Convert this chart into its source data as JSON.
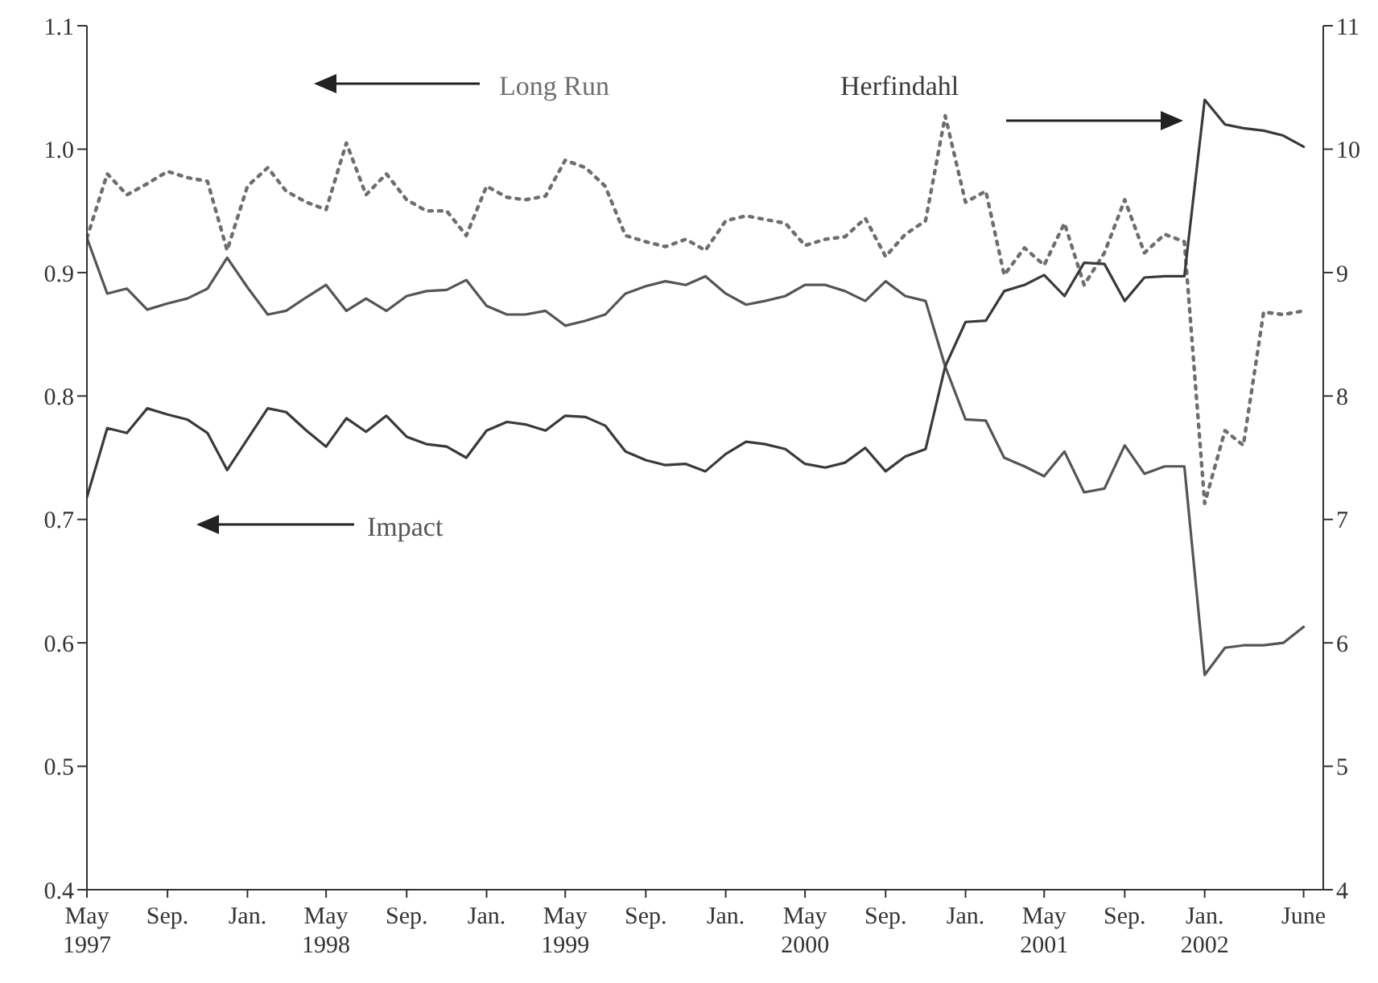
{
  "chart_data": {
    "type": "line",
    "x": [
      "1997-05",
      "1997-06",
      "1997-07",
      "1997-08",
      "1997-09",
      "1997-10",
      "1997-11",
      "1997-12",
      "1998-01",
      "1998-02",
      "1998-03",
      "1998-04",
      "1998-05",
      "1998-06",
      "1998-07",
      "1998-08",
      "1998-09",
      "1998-10",
      "1998-11",
      "1998-12",
      "1999-01",
      "1999-02",
      "1999-03",
      "1999-04",
      "1999-05",
      "1999-06",
      "1999-07",
      "1999-08",
      "1999-09",
      "1999-10",
      "1999-11",
      "1999-12",
      "2000-01",
      "2000-02",
      "2000-03",
      "2000-04",
      "2000-05",
      "2000-06",
      "2000-07",
      "2000-08",
      "2000-09",
      "2000-10",
      "2000-11",
      "2000-12",
      "2001-01",
      "2001-02",
      "2001-03",
      "2001-04",
      "2001-05",
      "2001-06",
      "2001-07",
      "2001-08",
      "2001-09",
      "2001-10",
      "2001-11",
      "2001-12",
      "2002-01",
      "2002-02",
      "2002-03",
      "2002-04",
      "2002-05",
      "2002-06"
    ],
    "series": [
      {
        "name": "Long Run",
        "color": "#6e6e6e",
        "line_style": "dotted",
        "values": [
          0.928,
          0.98,
          0.963,
          0.972,
          0.982,
          0.977,
          0.974,
          0.918,
          0.97,
          0.985,
          0.966,
          0.957,
          0.951,
          1.005,
          0.963,
          0.98,
          0.959,
          0.95,
          0.95,
          0.93,
          0.97,
          0.961,
          0.959,
          0.962,
          0.991,
          0.985,
          0.97,
          0.93,
          0.925,
          0.921,
          0.927,
          0.918,
          0.942,
          0.946,
          0.943,
          0.94,
          0.922,
          0.927,
          0.929,
          0.944,
          0.913,
          0.931,
          0.942,
          1.027,
          0.957,
          0.966,
          0.898,
          0.92,
          0.906,
          0.94,
          0.89,
          0.916,
          0.959,
          0.916,
          0.931,
          0.925,
          0.713,
          0.772,
          0.76,
          0.868,
          0.866,
          0.869
        ]
      },
      {
        "name": "Impact",
        "color": "#555555",
        "line_style": "solid",
        "values": [
          0.928,
          0.883,
          0.887,
          0.87,
          0.875,
          0.879,
          0.887,
          0.912,
          0.888,
          0.866,
          0.869,
          0.88,
          0.89,
          0.869,
          0.879,
          0.869,
          0.881,
          0.885,
          0.886,
          0.894,
          0.873,
          0.866,
          0.866,
          0.869,
          0.857,
          0.861,
          0.866,
          0.883,
          0.889,
          0.893,
          0.89,
          0.897,
          0.883,
          0.874,
          0.877,
          0.881,
          0.89,
          0.89,
          0.885,
          0.877,
          0.893,
          0.881,
          0.877,
          0.824,
          0.781,
          0.78,
          0.75,
          0.743,
          0.735,
          0.755,
          0.722,
          0.725,
          0.76,
          0.737,
          0.743,
          0.743,
          0.574,
          0.596,
          0.598,
          0.598,
          0.6,
          0.613
        ]
      },
      {
        "name": "Herfindahl",
        "color": "#3a3a3a",
        "line_style": "solid",
        "axis": "y2",
        "values": [
          7.18,
          7.74,
          7.7,
          7.9,
          7.85,
          7.81,
          7.7,
          7.4,
          7.65,
          7.9,
          7.87,
          7.72,
          7.59,
          7.82,
          7.71,
          7.84,
          7.67,
          7.61,
          7.59,
          7.5,
          7.72,
          7.79,
          7.77,
          7.72,
          7.84,
          7.83,
          7.76,
          7.55,
          7.48,
          7.44,
          7.45,
          7.39,
          7.53,
          7.63,
          7.61,
          7.57,
          7.45,
          7.42,
          7.46,
          7.58,
          7.39,
          7.51,
          7.57,
          8.24,
          8.6,
          8.61,
          8.85,
          8.9,
          8.98,
          8.81,
          9.08,
          9.07,
          8.77,
          8.96,
          8.97,
          8.97,
          10.4,
          10.2,
          10.17,
          10.15,
          10.11,
          10.02
        ]
      }
    ],
    "xlim": [
      "1997-05",
      "2002-07"
    ],
    "xticks": [
      {
        "value": "1997-05",
        "label": "May\n1997"
      },
      {
        "value": "1997-09",
        "label": "Sep."
      },
      {
        "value": "1998-01",
        "label": "Jan."
      },
      {
        "value": "1998-05",
        "label": "May\n1998"
      },
      {
        "value": "1998-09",
        "label": "Sep."
      },
      {
        "value": "1999-01",
        "label": "Jan."
      },
      {
        "value": "1999-05",
        "label": "May\n1999"
      },
      {
        "value": "1999-09",
        "label": "Sep."
      },
      {
        "value": "2000-01",
        "label": "Jan."
      },
      {
        "value": "2000-05",
        "label": "May\n2000"
      },
      {
        "value": "2000-09",
        "label": "Sep."
      },
      {
        "value": "2001-01",
        "label": "Jan."
      },
      {
        "value": "2001-05",
        "label": "May\n2001"
      },
      {
        "value": "2001-09",
        "label": "Sep."
      },
      {
        "value": "2002-01",
        "label": "Jan.\n2002"
      },
      {
        "value": "2002-06",
        "label": "June"
      }
    ],
    "ylim": [
      0.4,
      1.1
    ],
    "yticks": [
      0.4,
      0.5,
      0.6,
      0.7,
      0.8,
      0.9,
      {
        "value": 1.0,
        "label": "1.0"
      },
      1.1
    ],
    "y2lim": [
      4,
      11
    ],
    "y2ticks": [
      4,
      5,
      6,
      7,
      8,
      9,
      10,
      11
    ],
    "legend": false
  }
}
